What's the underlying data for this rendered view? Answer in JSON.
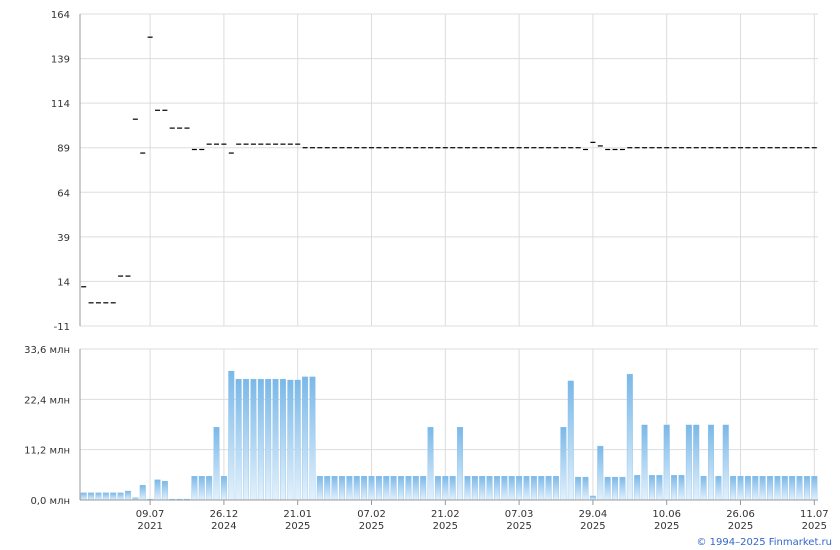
{
  "chart_data": [
    {
      "type": "dash",
      "color": "#000000",
      "values": [
        11,
        2,
        2,
        2,
        2,
        17,
        17,
        105,
        86,
        151,
        110,
        110,
        100,
        100,
        100,
        88,
        88,
        91,
        91,
        91,
        86,
        91,
        91,
        91,
        91,
        91,
        91,
        91,
        91,
        91,
        89,
        89,
        89,
        89,
        89,
        89,
        89,
        89,
        89,
        89,
        89,
        89,
        89,
        89,
        89,
        89,
        89,
        89,
        89,
        89,
        89,
        89,
        89,
        89,
        89,
        89,
        89,
        89,
        89,
        89,
        89,
        89,
        89,
        89,
        89,
        89,
        89,
        89,
        88,
        92,
        90,
        88,
        88,
        88,
        89,
        89,
        89,
        89,
        89,
        89,
        89,
        89,
        89,
        89,
        89,
        89,
        89,
        89,
        89,
        89,
        89,
        89,
        89,
        89,
        89,
        89,
        89,
        89,
        89,
        89
      ],
      "ylim": [
        -11,
        164
      ],
      "yticks": [
        164,
        139,
        114,
        89,
        64,
        39,
        14,
        -11
      ],
      "grid": true
    },
    {
      "type": "bar",
      "color": "#7ab8e8",
      "categories": [
        null,
        null,
        null,
        null,
        null,
        null,
        null,
        null,
        null,
        "09.07",
        null,
        null,
        null,
        null,
        null,
        null,
        null,
        null,
        null,
        "26.12",
        null,
        null,
        null,
        null,
        null,
        null,
        null,
        null,
        null,
        "21.01",
        null,
        null,
        null,
        null,
        null,
        null,
        null,
        null,
        null,
        "07.02",
        null,
        null,
        null,
        null,
        null,
        null,
        null,
        null,
        null,
        "21.02",
        null,
        null,
        null,
        null,
        null,
        null,
        null,
        null,
        null,
        "07.03",
        null,
        null,
        null,
        null,
        null,
        null,
        null,
        null,
        null,
        "29.04",
        null,
        null,
        null,
        null,
        null,
        null,
        null,
        null,
        null,
        "10.06",
        null,
        null,
        null,
        null,
        null,
        null,
        null,
        null,
        null,
        "26.06",
        null,
        null,
        null,
        null,
        null,
        null,
        null,
        null,
        null,
        "11.07"
      ],
      "category_years": [
        null,
        null,
        null,
        null,
        null,
        null,
        null,
        null,
        null,
        "2021",
        null,
        null,
        null,
        null,
        null,
        null,
        null,
        null,
        null,
        "2024",
        null,
        null,
        null,
        null,
        null,
        null,
        null,
        null,
        null,
        "2025",
        null,
        null,
        null,
        null,
        null,
        null,
        null,
        null,
        null,
        "2025",
        null,
        null,
        null,
        null,
        null,
        null,
        null,
        null,
        null,
        "2025",
        null,
        null,
        null,
        null,
        null,
        null,
        null,
        null,
        null,
        "2025",
        null,
        null,
        null,
        null,
        null,
        null,
        null,
        null,
        null,
        "2025",
        null,
        null,
        null,
        null,
        null,
        null,
        null,
        null,
        null,
        "2025",
        null,
        null,
        null,
        null,
        null,
        null,
        null,
        null,
        null,
        "2025",
        null,
        null,
        null,
        null,
        null,
        null,
        null,
        null,
        null,
        "2025"
      ],
      "values": [
        1.6,
        1.6,
        1.6,
        1.6,
        1.6,
        1.6,
        2.0,
        0.5,
        3.3,
        0.2,
        4.5,
        4.2,
        0.2,
        0.2,
        0.2,
        5.3,
        5.3,
        5.3,
        16.2,
        5.3,
        28.7,
        26.9,
        26.9,
        26.9,
        26.9,
        26.9,
        26.9,
        26.9,
        26.7,
        26.7,
        27.4,
        27.4,
        5.3,
        5.3,
        5.3,
        5.3,
        5.3,
        5.3,
        5.3,
        5.3,
        5.3,
        5.3,
        5.3,
        5.3,
        5.3,
        5.3,
        5.3,
        16.2,
        5.3,
        5.3,
        5.3,
        16.2,
        5.3,
        5.3,
        5.3,
        5.3,
        5.3,
        5.3,
        5.3,
        5.3,
        5.3,
        5.3,
        5.3,
        5.3,
        5.3,
        16.2,
        26.5,
        5.1,
        5.1,
        0.9,
        12,
        5.1,
        5.1,
        5.1,
        28,
        5.5,
        16.7,
        5.5,
        5.5,
        16.7,
        5.5,
        5.5,
        16.7,
        16.7,
        5.3,
        16.7,
        5.3,
        16.7,
        5.3,
        5.3,
        5.3,
        5.3,
        5.3,
        5.3,
        5.3,
        5.3,
        5.3,
        5.3,
        5.3,
        5.3
      ],
      "ylim": [
        0,
        33.6
      ],
      "yticks": [
        {
          "value": 0,
          "label": "0,0 млн"
        },
        {
          "value": 11.2,
          "label": "11,2 млн"
        },
        {
          "value": 22.4,
          "label": "22,4 млн"
        },
        {
          "value": 33.6,
          "label": "33,6 млн"
        }
      ],
      "grid": true
    }
  ],
  "footer": "© 1994–2025 Finmarket.ru"
}
